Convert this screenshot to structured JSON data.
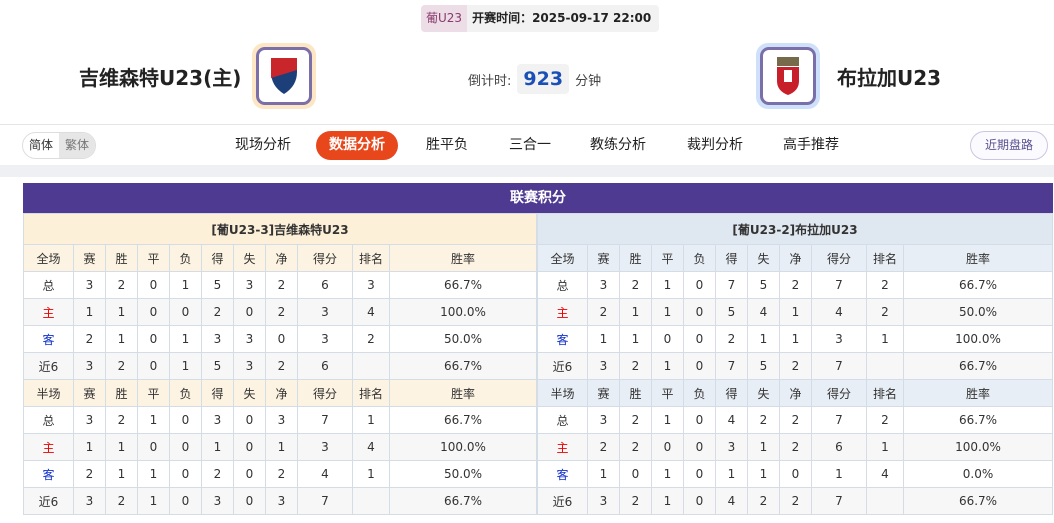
{
  "header": {
    "league": "葡U23",
    "kickoff": "开赛时间：2025-09-17 22:00",
    "home": "吉维森特U23(主)",
    "away": "布拉加U23",
    "countdown_label": "倒计时:",
    "countdown_value": "923",
    "countdown_unit": "分钟",
    "home_logo_bg": "#fde6c4",
    "away_logo_bg": "#cfe0fb"
  },
  "lang": {
    "simplified": "简体",
    "traditional": "繁体"
  },
  "tabs": [
    "现场分析",
    "数据分析",
    "胜平负",
    "三合一",
    "教练分析",
    "裁判分析",
    "高手推荐"
  ],
  "active_tab": "数据分析",
  "recent_button": "近期盘路",
  "section_title": "联赛积分",
  "columns_full": [
    "全场",
    "赛",
    "胜",
    "平",
    "负",
    "得",
    "失",
    "净",
    "得分",
    "排名",
    "胜率"
  ],
  "columns_half": [
    "半场",
    "赛",
    "胜",
    "平",
    "负",
    "得",
    "失",
    "净",
    "得分",
    "排名",
    "胜率"
  ],
  "home_table": {
    "caption": "[葡U23-3]吉维森特U23",
    "full": [
      [
        "总",
        "3",
        "2",
        "0",
        "1",
        "5",
        "3",
        "2",
        "6",
        "3",
        "66.7%"
      ],
      [
        "主",
        "1",
        "1",
        "0",
        "0",
        "2",
        "0",
        "2",
        "3",
        "4",
        "100.0%"
      ],
      [
        "客",
        "2",
        "1",
        "0",
        "1",
        "3",
        "3",
        "0",
        "3",
        "2",
        "50.0%"
      ],
      [
        "近6",
        "3",
        "2",
        "0",
        "1",
        "5",
        "3",
        "2",
        "6",
        "",
        "66.7%"
      ]
    ],
    "half": [
      [
        "总",
        "3",
        "2",
        "1",
        "0",
        "3",
        "0",
        "3",
        "7",
        "1",
        "66.7%"
      ],
      [
        "主",
        "1",
        "1",
        "0",
        "0",
        "1",
        "0",
        "1",
        "3",
        "4",
        "100.0%"
      ],
      [
        "客",
        "2",
        "1",
        "1",
        "0",
        "2",
        "0",
        "2",
        "4",
        "1",
        "50.0%"
      ],
      [
        "近6",
        "3",
        "2",
        "1",
        "0",
        "3",
        "0",
        "3",
        "7",
        "",
        "66.7%"
      ]
    ]
  },
  "away_table": {
    "caption": "[葡U23-2]布拉加U23",
    "full": [
      [
        "总",
        "3",
        "2",
        "1",
        "0",
        "7",
        "5",
        "2",
        "7",
        "2",
        "66.7%"
      ],
      [
        "主",
        "2",
        "1",
        "1",
        "0",
        "5",
        "4",
        "1",
        "4",
        "2",
        "50.0%"
      ],
      [
        "客",
        "1",
        "1",
        "0",
        "0",
        "2",
        "1",
        "1",
        "3",
        "1",
        "100.0%"
      ],
      [
        "近6",
        "3",
        "2",
        "1",
        "0",
        "7",
        "5",
        "2",
        "7",
        "",
        "66.7%"
      ]
    ],
    "half": [
      [
        "总",
        "3",
        "2",
        "1",
        "0",
        "4",
        "2",
        "2",
        "7",
        "2",
        "66.7%"
      ],
      [
        "主",
        "2",
        "2",
        "0",
        "0",
        "3",
        "1",
        "2",
        "6",
        "1",
        "100.0%"
      ],
      [
        "客",
        "1",
        "0",
        "1",
        "0",
        "1",
        "1",
        "0",
        "1",
        "4",
        "0.0%"
      ],
      [
        "近6",
        "3",
        "2",
        "1",
        "0",
        "4",
        "2",
        "2",
        "7",
        "",
        "66.7%"
      ]
    ]
  }
}
